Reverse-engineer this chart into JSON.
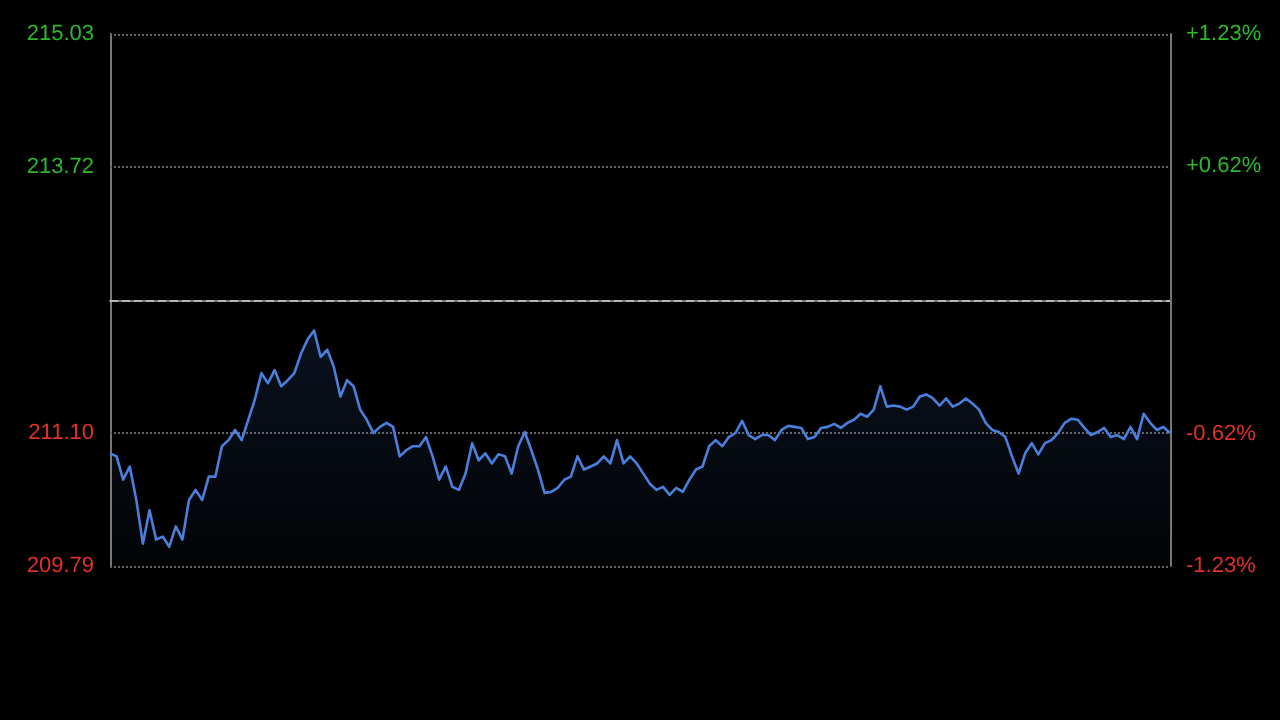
{
  "chart_data": {
    "type": "area",
    "categories": [
      null,
      null,
      null,
      null,
      null,
      null,
      null,
      null,
      null,
      null,
      null,
      null,
      null,
      null,
      null,
      null,
      null,
      null,
      null,
      null,
      null,
      null,
      null,
      null,
      null,
      null,
      null,
      null,
      null,
      null,
      null,
      null,
      null,
      null,
      null,
      null,
      null,
      null,
      null,
      null,
      null,
      null,
      null,
      null,
      null,
      null,
      null,
      null,
      null,
      null,
      null,
      null,
      null,
      null,
      null,
      null,
      null,
      null,
      null,
      null,
      null,
      null,
      null,
      null,
      null,
      null,
      null,
      null,
      null,
      null,
      null,
      null,
      null,
      null,
      null,
      null,
      null,
      null,
      null,
      null,
      null,
      null,
      null,
      null,
      null,
      null,
      null,
      null,
      null,
      null,
      null,
      null,
      null,
      null,
      null,
      null,
      null,
      null,
      null,
      null,
      null,
      null,
      null,
      null,
      null,
      null,
      null,
      null,
      null,
      null,
      null,
      null,
      null,
      null,
      null,
      null,
      null,
      null,
      null,
      null,
      null,
      null,
      null,
      null,
      null,
      null,
      null,
      null,
      null,
      null,
      null,
      null,
      null,
      null,
      null,
      null,
      null,
      null,
      null,
      null,
      null,
      null,
      null,
      null,
      null,
      null,
      null,
      null,
      null,
      null,
      null,
      null,
      null,
      null,
      null,
      null,
      null,
      null,
      null,
      null,
      null,
      null
    ],
    "series": [
      {
        "color": "#4a7fdc",
        "values": [
          210.9,
          210.87,
          210.64,
          210.77,
          210.44,
          210.01,
          210.34,
          210.05,
          210.08,
          209.98,
          210.18,
          210.05,
          210.44,
          210.54,
          210.44,
          210.67,
          210.67,
          210.97,
          211.03,
          211.13,
          211.03,
          211.23,
          211.43,
          211.69,
          211.59,
          211.72,
          211.56,
          211.62,
          211.69,
          211.88,
          212.02,
          212.11,
          211.85,
          211.92,
          211.75,
          211.46,
          211.62,
          211.56,
          211.33,
          211.23,
          211.1,
          211.16,
          211.2,
          211.16,
          210.87,
          210.93,
          210.97,
          210.97,
          211.06,
          210.87,
          210.64,
          210.77,
          210.57,
          210.54,
          210.7,
          211.0,
          210.83,
          210.9,
          210.8,
          210.89,
          210.87,
          210.7,
          210.97,
          211.11,
          210.93,
          210.74,
          210.51,
          210.52,
          210.56,
          210.64,
          210.67,
          210.87,
          210.74,
          210.77,
          210.8,
          210.87,
          210.8,
          211.03,
          210.8,
          210.87,
          210.8,
          210.7,
          210.6,
          210.54,
          210.57,
          210.49,
          210.56,
          210.52,
          210.64,
          210.74,
          210.77,
          210.97,
          211.03,
          210.97,
          211.06,
          211.1,
          211.22,
          211.08,
          211.04,
          211.08,
          211.08,
          211.03,
          211.13,
          211.17,
          211.16,
          211.15,
          211.04,
          211.06,
          211.15,
          211.16,
          211.19,
          211.15,
          211.2,
          211.23,
          211.29,
          211.26,
          211.33,
          211.56,
          211.36,
          211.37,
          211.36,
          211.33,
          211.36,
          211.46,
          211.48,
          211.44,
          211.37,
          211.44,
          211.36,
          211.39,
          211.44,
          211.39,
          211.33,
          211.2,
          211.13,
          211.11,
          211.06,
          210.87,
          210.7,
          210.9,
          211.0,
          210.89,
          211.0,
          211.03,
          211.1,
          211.2,
          211.24,
          211.23,
          211.15,
          211.08,
          211.11,
          211.15,
          211.06,
          211.08,
          211.04,
          211.16,
          211.04,
          211.29,
          211.2,
          211.13,
          211.16,
          211.1
        ]
      }
    ],
    "ylim": [
      209.79,
      215.03
    ],
    "yticks": [
      {
        "value": 209.79,
        "label": "209.79"
      },
      {
        "value": 211.1,
        "label": "211.10"
      },
      {
        "value": 212.41,
        "label": null
      },
      {
        "value": 213.72,
        "label": "213.72"
      },
      {
        "value": 215.03,
        "label": "215.03"
      }
    ],
    "y2lim": [
      -1.23,
      1.23
    ],
    "y2ticks": [
      {
        "value": -1.23,
        "label": "-1.23%"
      },
      {
        "value": -0.62,
        "label": "-0.62%"
      },
      {
        "value": 0.62,
        "label": "+0.62%"
      },
      {
        "value": 1.23,
        "label": "+1.23%"
      }
    ],
    "ref_lines": [
      {
        "axis": "y",
        "value": 212.41,
        "color": "#bbbbbb",
        "line_style": "dashed"
      }
    ],
    "grid": "y",
    "tick_labels": "y",
    "line_style": "solid"
  }
}
